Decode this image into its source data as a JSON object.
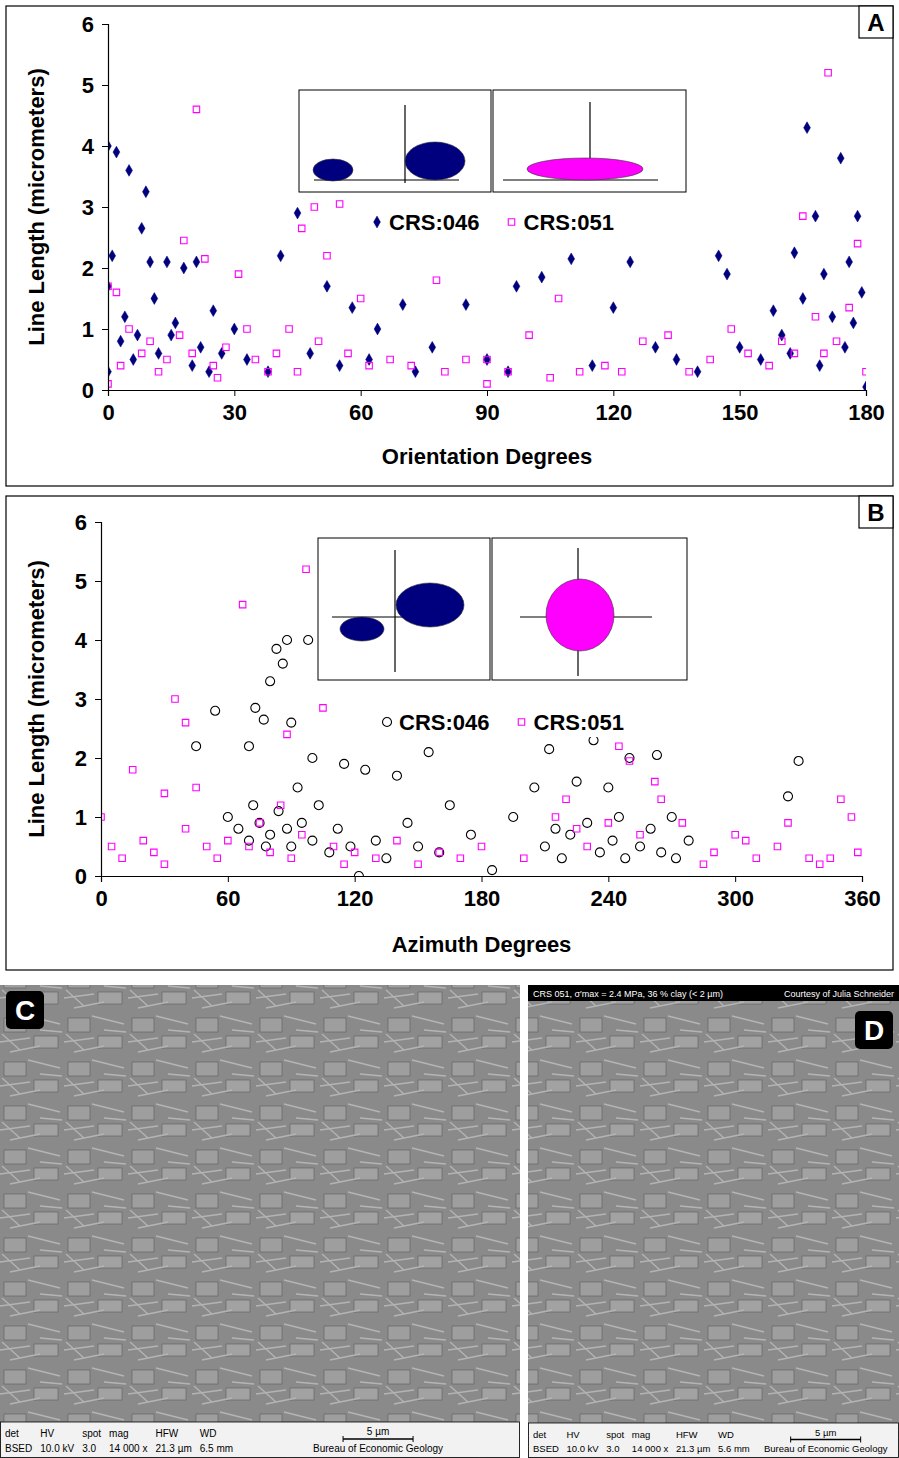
{
  "chart_data": [
    {
      "type": "scatter",
      "panel_label": "A",
      "xlabel": "Orientation Degrees",
      "ylabel": "Line Length (micrometers)",
      "xlim": [
        0,
        180
      ],
      "xticks": [
        0,
        30,
        60,
        90,
        120,
        150,
        180
      ],
      "ylim": [
        0,
        6
      ],
      "yticks": [
        0,
        1,
        2,
        3,
        4,
        5,
        6
      ],
      "legend": "top",
      "series": [
        {
          "name": "CRS:046",
          "color": "#00007f",
          "marker": "diamond",
          "x": [
            0,
            2,
            5,
            9,
            8,
            10,
            14,
            18,
            21,
            25,
            30,
            41,
            45,
            52,
            58,
            64,
            70,
            77,
            85,
            97,
            103,
            110,
            120,
            124,
            130,
            145,
            147,
            158,
            163,
            166,
            168,
            170,
            174,
            176,
            178,
            179,
            180,
            0,
            1,
            3,
            6,
            12,
            15,
            20,
            27,
            33,
            38,
            48,
            55,
            62,
            73,
            90,
            95,
            115,
            135,
            140,
            150,
            155,
            160,
            165,
            172,
            175,
            177,
            169,
            162,
            0,
            4,
            7,
            11,
            16,
            22,
            24
          ],
          "values": [
            4.0,
            3.9,
            3.6,
            3.25,
            2.65,
            2.1,
            2.1,
            2.0,
            2.1,
            1.3,
            1.0,
            2.2,
            2.9,
            1.7,
            1.35,
            1.0,
            1.4,
            0.7,
            1.4,
            1.7,
            1.85,
            2.15,
            1.35,
            2.1,
            0.7,
            2.2,
            1.9,
            1.3,
            2.25,
            4.3,
            2.85,
            1.9,
            3.8,
            2.1,
            2.85,
            1.6,
            0.05,
            1.7,
            2.2,
            0.8,
            0.5,
            0.6,
            0.9,
            0.4,
            0.6,
            0.5,
            0.3,
            0.6,
            0.4,
            0.5,
            0.3,
            0.5,
            0.3,
            0.4,
            0.5,
            0.3,
            0.7,
            0.5,
            0.9,
            1.5,
            1.2,
            0.7,
            1.1,
            0.4,
            0.6,
            0.3,
            1.2,
            0.9,
            1.5,
            1.1,
            0.7,
            0.3
          ]
        },
        {
          "name": "CRS:051",
          "color": "#ff00ff",
          "marker": "square-open",
          "x": [
            21,
            171,
            49,
            55,
            46,
            18,
            23,
            31,
            52,
            60,
            78,
            107,
            165,
            178,
            176,
            168,
            0,
            2,
            5,
            10,
            14,
            25,
            28,
            35,
            40,
            45,
            50,
            57,
            62,
            67,
            72,
            80,
            85,
            90,
            90,
            95,
            100,
            105,
            112,
            118,
            122,
            127,
            133,
            138,
            143,
            148,
            152,
            157,
            160,
            163,
            170,
            173,
            180,
            0,
            3,
            8,
            12,
            17,
            20,
            26,
            33,
            38,
            43
          ],
          "values": [
            4.6,
            5.2,
            3.0,
            3.05,
            2.65,
            2.45,
            2.15,
            1.9,
            2.2,
            1.5,
            1.8,
            1.5,
            2.85,
            2.4,
            1.35,
            1.2,
            1.7,
            1.6,
            1.0,
            0.8,
            0.5,
            0.4,
            0.7,
            0.5,
            0.6,
            0.3,
            0.8,
            0.6,
            0.4,
            0.5,
            0.4,
            0.3,
            0.5,
            0.5,
            0.1,
            0.3,
            0.9,
            0.2,
            0.3,
            0.4,
            0.3,
            0.8,
            0.9,
            0.3,
            0.5,
            1.0,
            0.6,
            0.4,
            0.8,
            0.6,
            0.6,
            0.8,
            0.3,
            0.1,
            0.4,
            0.6,
            0.3,
            0.9,
            0.6,
            0.2,
            1.0,
            0.3,
            1.0
          ]
        }
      ]
    },
    {
      "type": "scatter",
      "panel_label": "B",
      "xlabel": "Azimuth Degrees",
      "ylabel": "Line Length (micrometers)",
      "xlim": [
        0,
        360
      ],
      "xticks": [
        0,
        60,
        120,
        180,
        240,
        300,
        360
      ],
      "ylim": [
        0,
        6
      ],
      "yticks": [
        0,
        1,
        2,
        3,
        4,
        5,
        6
      ],
      "legend": "top",
      "series": [
        {
          "name": "CRS:046",
          "color": "#000000",
          "marker": "circle-open",
          "x": [
            88,
            98,
            83,
            86,
            80,
            54,
            73,
            70,
            77,
            90,
            45,
            100,
            115,
            125,
            140,
            155,
            165,
            175,
            185,
            195,
            205,
            212,
            225,
            233,
            240,
            250,
            263,
            270,
            278,
            330,
            325,
            60,
            65,
            70,
            72,
            75,
            78,
            80,
            84,
            88,
            90,
            93,
            95,
            100,
            103,
            108,
            112,
            118,
            122,
            130,
            135,
            145,
            150,
            160,
            210,
            218,
            222,
            230,
            236,
            242,
            248,
            255,
            260,
            265,
            272,
            215,
            245
          ],
          "values": [
            4.0,
            4.0,
            3.85,
            3.6,
            3.3,
            2.8,
            2.85,
            2.2,
            2.65,
            2.6,
            2.2,
            2.0,
            1.9,
            1.8,
            1.7,
            2.1,
            1.2,
            0.7,
            0.1,
            1.0,
            1.5,
            2.15,
            1.6,
            2.3,
            1.5,
            2.0,
            2.05,
            1.0,
            0.6,
            1.95,
            1.35,
            1.0,
            0.8,
            0.6,
            1.2,
            0.9,
            0.5,
            0.7,
            1.1,
            0.8,
            0.5,
            1.5,
            0.9,
            0.6,
            1.2,
            0.4,
            0.8,
            0.5,
            0.0,
            0.6,
            0.3,
            0.9,
            0.5,
            0.4,
            0.5,
            0.3,
            0.7,
            0.9,
            0.4,
            0.6,
            0.3,
            0.5,
            0.8,
            0.4,
            0.3,
            0.8,
            1.0
          ]
        },
        {
          "name": "CRS:051",
          "color": "#ff00ff",
          "marker": "square-open",
          "x": [
            67,
            97,
            35,
            105,
            40,
            88,
            245,
            250,
            262,
            15,
            45,
            30,
            0,
            5,
            10,
            20,
            25,
            30,
            40,
            50,
            55,
            60,
            70,
            75,
            80,
            85,
            90,
            95,
            110,
            115,
            120,
            130,
            140,
            150,
            160,
            170,
            180,
            200,
            215,
            220,
            225,
            230,
            240,
            255,
            265,
            275,
            290,
            300,
            310,
            320,
            325,
            335,
            340,
            350,
            355,
            358,
            345,
            305,
            285
          ],
          "values": [
            4.6,
            5.2,
            3.0,
            2.85,
            2.6,
            2.4,
            2.2,
            1.95,
            1.6,
            1.8,
            1.5,
            1.4,
            1.0,
            0.5,
            0.3,
            0.6,
            0.4,
            0.2,
            0.8,
            0.5,
            0.3,
            0.6,
            0.5,
            0.9,
            0.4,
            1.2,
            0.3,
            0.7,
            0.5,
            0.2,
            0.4,
            0.3,
            0.6,
            0.2,
            0.4,
            0.3,
            0.5,
            0.3,
            1.0,
            1.3,
            0.8,
            0.5,
            0.9,
            0.7,
            1.3,
            0.9,
            0.4,
            0.7,
            0.3,
            0.5,
            0.9,
            0.3,
            0.2,
            1.3,
            1.0,
            0.4,
            0.3,
            0.6,
            0.2
          ]
        }
      ]
    }
  ],
  "images": [
    {
      "panel_label": "C",
      "footer": {
        "fields": [
          {
            "name": "det",
            "value": "BSED"
          },
          {
            "name": "HV",
            "value": "10.0 kV"
          },
          {
            "name": "spot",
            "value": "3.0"
          },
          {
            "name": "mag",
            "value": "14 000 x"
          },
          {
            "name": "HFW",
            "value": "21.3 µm"
          },
          {
            "name": "WD",
            "value": "6.5 mm"
          }
        ],
        "scale": "5 µm",
        "institution": "Bureau of Economic Geology"
      }
    },
    {
      "panel_label": "D",
      "header": "CRS 051, σ′max = 2.4 MPa, 36 % clay (< 2 µm)",
      "credit": "Courtesy of Julia Schneider",
      "footer": {
        "fields": [
          {
            "name": "det",
            "value": "BSED"
          },
          {
            "name": "HV",
            "value": "10.0 kV"
          },
          {
            "name": "spot",
            "value": "3.0"
          },
          {
            "name": "mag",
            "value": "14 000 x"
          },
          {
            "name": "HFW",
            "value": "21.3 µm"
          },
          {
            "name": "WD",
            "value": "5.6 mm"
          }
        ],
        "scale": "5 µm",
        "institution": "Bureau of Economic Geology"
      }
    }
  ]
}
